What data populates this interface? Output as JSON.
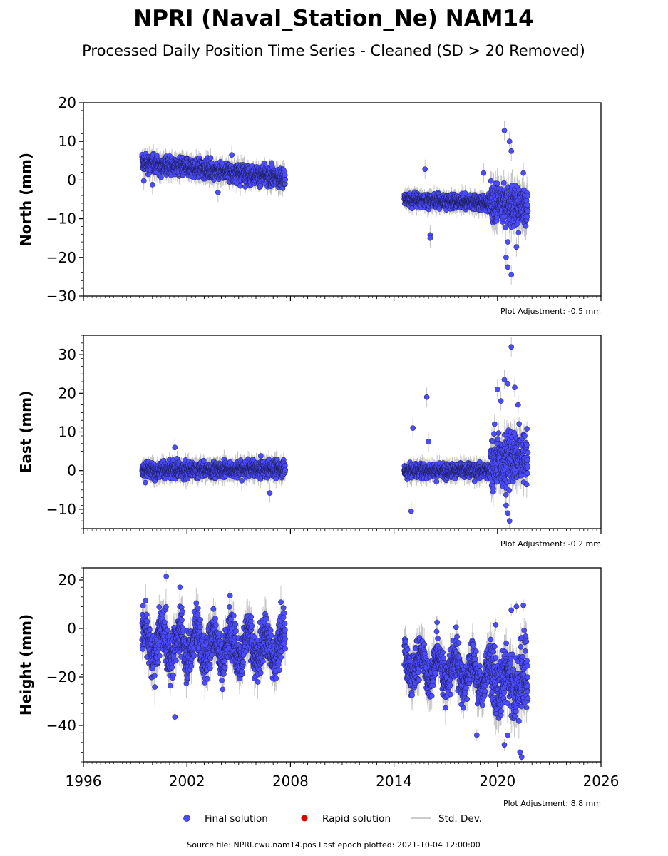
{
  "title": "NPRI (Naval_Station_Ne) NAM14",
  "subtitle": "Processed Daily Position Time Series - Cleaned (SD > 20 Removed)",
  "footer": "Source file: NPRI.cwu.nam14.pos  Last epoch plotted: 2021-10-04 12:00:00",
  "colors": {
    "final": "#4c4cff",
    "rapid": "#dd0000",
    "stddev": "#bbbbbb",
    "edge": "#1a1a55"
  },
  "legend": [
    {
      "label": "Final solution",
      "marker": "final-dot"
    },
    {
      "label": "Rapid solution",
      "marker": "rapid-dot"
    },
    {
      "label": "Std. Dev.",
      "marker": "stddev-line"
    }
  ],
  "chart_data": [
    {
      "type": "scatter",
      "panel": "north",
      "ylabel": "North (mm)",
      "xlim": [
        1996,
        2026
      ],
      "ylim": [
        -30,
        20
      ],
      "yticks": [
        20,
        10,
        0,
        -10,
        -20,
        -30
      ],
      "adjustment": "Plot Adjustment: -0.5 mm",
      "segments": [
        {
          "x_start": 1999.4,
          "x_end": 2007.7,
          "mean_start": 4.5,
          "mean_end": 0.5,
          "scatter": 1.6,
          "sd": 1.8
        },
        {
          "x_start": 2014.6,
          "x_end": 2019.6,
          "mean_start": -5.0,
          "mean_end": -6.0,
          "scatter": 1.2,
          "sd": 1.6
        },
        {
          "x_start": 2019.6,
          "x_end": 2021.76,
          "mean_start": -5.5,
          "mean_end": -7.0,
          "scatter": 3.6,
          "sd": 3.0
        }
      ],
      "outliers": [
        {
          "x": 1999.5,
          "y": -0.2
        },
        {
          "x": 2000.0,
          "y": -1.2
        },
        {
          "x": 2003.8,
          "y": -3.2
        },
        {
          "x": 2004.6,
          "y": 6.5
        },
        {
          "x": 2015.8,
          "y": 2.8
        },
        {
          "x": 2016.1,
          "y": -14.2
        },
        {
          "x": 2016.1,
          "y": -15.0
        },
        {
          "x": 2019.2,
          "y": 1.8
        },
        {
          "x": 2020.4,
          "y": 12.8
        },
        {
          "x": 2020.7,
          "y": 10.0
        },
        {
          "x": 2020.8,
          "y": 7.5
        },
        {
          "x": 2020.6,
          "y": -22.5
        },
        {
          "x": 2020.8,
          "y": -24.5
        },
        {
          "x": 2020.5,
          "y": -20.0
        },
        {
          "x": 2021.1,
          "y": -17.3
        },
        {
          "x": 2021.5,
          "y": 1.8
        },
        {
          "x": 2020.6,
          "y": -16.0
        }
      ]
    },
    {
      "type": "scatter",
      "panel": "east",
      "ylabel": "East (mm)",
      "xlim": [
        1996,
        2026
      ],
      "ylim": [
        -15,
        35
      ],
      "yticks": [
        30,
        20,
        10,
        0,
        -10
      ],
      "adjustment": "Plot Adjustment: -0.2 mm",
      "segments": [
        {
          "x_start": 1999.4,
          "x_end": 2007.7,
          "mean_start": 0.0,
          "mean_end": 0.5,
          "scatter": 1.4,
          "sd": 1.8
        },
        {
          "x_start": 2014.6,
          "x_end": 2019.6,
          "mean_start": 0.0,
          "mean_end": 0.0,
          "scatter": 1.3,
          "sd": 1.6
        },
        {
          "x_start": 2019.6,
          "x_end": 2021.76,
          "mean_start": 2.0,
          "mean_end": 4.0,
          "scatter": 4.8,
          "sd": 3.0
        }
      ],
      "outliers": [
        {
          "x": 2001.3,
          "y": 6.0
        },
        {
          "x": 2006.8,
          "y": -5.8
        },
        {
          "x": 2015.0,
          "y": -10.5
        },
        {
          "x": 2015.1,
          "y": 11.0
        },
        {
          "x": 2015.9,
          "y": 19.0
        },
        {
          "x": 2016.0,
          "y": 7.5
        },
        {
          "x": 2020.0,
          "y": 21.0
        },
        {
          "x": 2020.2,
          "y": 18.0
        },
        {
          "x": 2020.4,
          "y": 23.5
        },
        {
          "x": 2020.6,
          "y": 22.5
        },
        {
          "x": 2020.8,
          "y": 32.0
        },
        {
          "x": 2021.0,
          "y": 21.5
        },
        {
          "x": 2021.2,
          "y": 17.0
        },
        {
          "x": 2020.6,
          "y": -11.0
        },
        {
          "x": 2020.7,
          "y": -13.0
        },
        {
          "x": 2020.5,
          "y": -9.0
        },
        {
          "x": 2019.8,
          "y": 9.5
        }
      ]
    },
    {
      "type": "scatter",
      "panel": "height",
      "ylabel": "Height (mm)",
      "xlim": [
        1996,
        2026
      ],
      "ylim": [
        -55,
        25
      ],
      "yticks": [
        20,
        0,
        -20,
        -40
      ],
      "xticks": [
        1996,
        2002,
        2008,
        2014,
        2020,
        2026
      ],
      "xticklabels": [
        "1996",
        "2002",
        "2008",
        "2014",
        "2020",
        "2026"
      ],
      "adjustment": "Plot Adjustment: 8.8 mm",
      "segments": [
        {
          "x_start": 1999.4,
          "x_end": 2007.7,
          "mean_start": -6.0,
          "mean_end": -8.0,
          "scatter": 6.5,
          "sd": 5.0,
          "annual": 6.0
        },
        {
          "x_start": 2014.6,
          "x_end": 2019.6,
          "mean_start": -14.0,
          "mean_end": -20.0,
          "scatter": 5.5,
          "sd": 5.0,
          "annual": 5.0
        },
        {
          "x_start": 2019.6,
          "x_end": 2021.76,
          "mean_start": -20.0,
          "mean_end": -22.0,
          "scatter": 9.0,
          "sd": 6.0,
          "annual": 5.0
        }
      ],
      "outliers": [
        {
          "x": 2000.8,
          "y": 21.5
        },
        {
          "x": 2001.6,
          "y": 17.0
        },
        {
          "x": 2001.3,
          "y": -36.5
        },
        {
          "x": 2004.5,
          "y": 13.5
        },
        {
          "x": 2007.6,
          "y": 8.5
        },
        {
          "x": 2016.5,
          "y": 2.5
        },
        {
          "x": 2017.6,
          "y": 0.5
        },
        {
          "x": 2018.8,
          "y": -44.0
        },
        {
          "x": 2019.9,
          "y": 1.5
        },
        {
          "x": 2020.4,
          "y": -48.0
        },
        {
          "x": 2020.8,
          "y": 7.5
        },
        {
          "x": 2021.3,
          "y": -51.0
        },
        {
          "x": 2021.4,
          "y": -53.0
        },
        {
          "x": 2021.5,
          "y": 9.5
        },
        {
          "x": 2021.1,
          "y": 9.0
        },
        {
          "x": 2020.6,
          "y": -44.0
        }
      ]
    }
  ]
}
